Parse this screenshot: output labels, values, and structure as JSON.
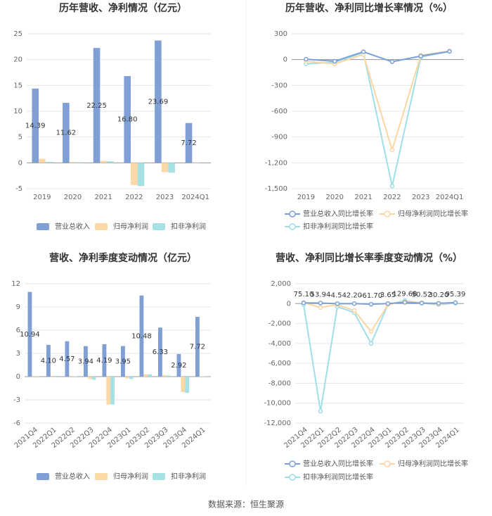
{
  "chart_data": [
    {
      "type": "bar",
      "title": "历年营收、净利情况（亿元）",
      "categories": [
        "2019",
        "2020",
        "2021",
        "2022",
        "2023",
        "2024Q1"
      ],
      "series": [
        {
          "name": "营业总收入",
          "color": "#7f9fd5",
          "values": [
            14.39,
            11.62,
            22.25,
            16.8,
            23.69,
            7.72
          ],
          "value_labels": [
            "14.39",
            "11.62",
            "22.25",
            "16.80",
            "23.69",
            "7.72"
          ]
        },
        {
          "name": "归母净利润",
          "color": "#fbd8a5",
          "values": [
            0.8,
            0.2,
            0.4,
            -4.3,
            -1.8,
            0.05
          ]
        },
        {
          "name": "扣非净利润",
          "color": "#a6e2e3",
          "values": [
            0.2,
            0.1,
            0.3,
            -4.5,
            -1.9,
            0.02
          ]
        }
      ],
      "ylim": [
        -5,
        25
      ],
      "yticks": [
        -5,
        0,
        5,
        10,
        15,
        20,
        25
      ],
      "grid": true
    },
    {
      "type": "line",
      "title": "历年营收、净利同比增长率情况（%）",
      "categories": [
        "2019",
        "2020",
        "2021",
        "2022",
        "2023",
        "2024Q1"
      ],
      "series": [
        {
          "name": "营业总收入同比增长率",
          "color": "#7ba0d8",
          "values": [
            4.27,
            -19.22,
            91.39,
            -24.48,
            40.99,
            95.39
          ]
        },
        {
          "name": "归母净利润同比增长率",
          "color": "#fcd6a2",
          "values": [
            -20,
            -50,
            60,
            -1050,
            50,
            100
          ]
        },
        {
          "name": "扣非净利润同比增长率",
          "color": "#9fdfe6",
          "values": [
            -50,
            -30,
            80,
            -1470,
            30,
            95
          ]
        }
      ],
      "ylim": [
        -1500,
        300
      ],
      "yticks": [
        {
          "value": -1500,
          "label": "-1,500"
        },
        {
          "value": -1200,
          "label": "-1,200"
        },
        -900,
        -600,
        -300,
        0,
        300
      ],
      "grid": true
    },
    {
      "type": "bar",
      "title": "营收、净利季度变动情况（亿元）",
      "categories": [
        "2021Q4",
        "2022Q1",
        "2022Q2",
        "2022Q3",
        "2022Q4",
        "2023Q1",
        "2023Q2",
        "2023Q3",
        "2023Q4",
        "2024Q1"
      ],
      "series": [
        {
          "name": "营业总收入",
          "color": "#7f9fd5",
          "values": [
            10.94,
            4.1,
            4.57,
            3.94,
            4.19,
            3.95,
            10.48,
            6.33,
            2.92,
            7.72
          ],
          "value_labels": [
            "10.94",
            "4.10",
            "4.57",
            "3.94",
            "4.19",
            "3.95",
            "10.48",
            "6.33",
            "2.92",
            "7.72"
          ]
        },
        {
          "name": "归母净利润",
          "color": "#fbd8a5",
          "values": [
            0.1,
            -0.1,
            0.1,
            -0.3,
            -3.6,
            -0.2,
            0.3,
            0.2,
            -2.0,
            0.05
          ]
        },
        {
          "name": "扣非净利润",
          "color": "#a6e2e3",
          "values": [
            0.05,
            -0.1,
            0.05,
            -0.4,
            -3.6,
            -0.3,
            0.3,
            0.15,
            -2.1,
            0.02
          ]
        }
      ],
      "ylim": [
        -6,
        12
      ],
      "yticks": [
        -6,
        -3,
        0,
        3,
        6,
        9,
        12
      ],
      "grid": true
    },
    {
      "type": "line",
      "title": "营收、净利同比增长率季度变动情况（%）",
      "categories": [
        "2021Q4",
        "2022Q1",
        "2022Q2",
        "2022Q3",
        "2022Q4",
        "2023Q1",
        "2023Q2",
        "2023Q3",
        "2023Q4",
        "2024Q1"
      ],
      "series": [
        {
          "name": "营业总收入同比增长率",
          "color": "#7ba0d8",
          "values": [
            75.1,
            53.94,
            -4.54,
            2.2,
            -61.7,
            3.65,
            129.68,
            50.52,
            30.2,
            95.39
          ],
          "value_labels": [
            "75.10",
            "53.94",
            "-4.54",
            "2.20",
            "-61.70",
            "3.65",
            "129.68",
            "50.52",
            "30.20",
            "95.39"
          ]
        },
        {
          "name": "归母净利润同比增长率",
          "color": "#fcd6a2",
          "values": [
            100,
            -400,
            -100,
            -700,
            -2800,
            -100,
            200,
            100,
            -50,
            100
          ]
        },
        {
          "name": "扣非净利润同比增长率",
          "color": "#9fdfe6",
          "values": [
            -100,
            -10800,
            -300,
            -900,
            -4000,
            -100,
            300,
            50,
            -100,
            50
          ]
        }
      ],
      "ylim": [
        -12000,
        2000
      ],
      "yticks": [
        {
          "value": -12000,
          "label": "-12,000"
        },
        {
          "value": -10000,
          "label": "-10,000"
        },
        {
          "value": -8000,
          "label": "-8,000"
        },
        {
          "value": -6000,
          "label": "-6,000"
        },
        {
          "value": -4000,
          "label": "-4,000"
        },
        {
          "value": -2000,
          "label": "-2,000"
        },
        0,
        {
          "value": 2000,
          "label": "2,000"
        }
      ],
      "grid": true
    }
  ],
  "footer": "数据来源：恒生聚源"
}
